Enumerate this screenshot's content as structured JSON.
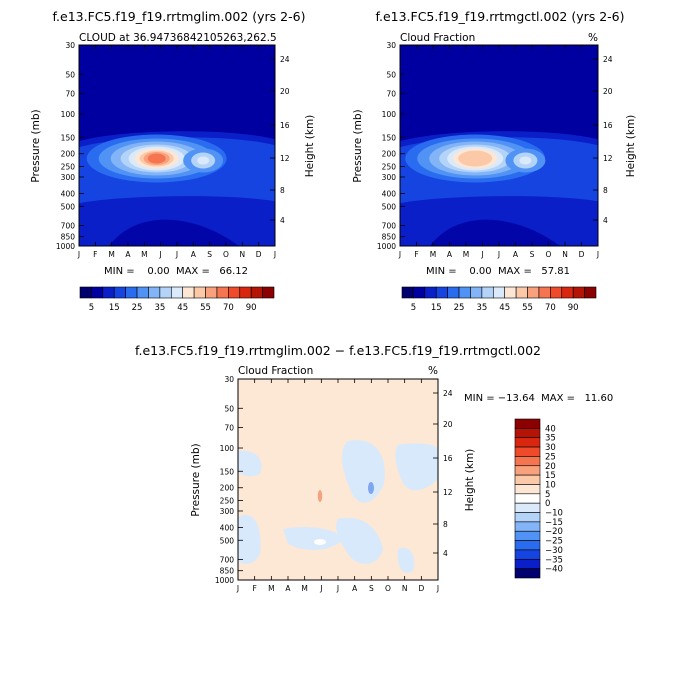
{
  "chart_data": [
    {
      "type": "heatmap",
      "title": "f.e13.FC5.f19_f19.rrtmglim.002 (yrs 2-6)",
      "subtitle_left": "CLOUD at 36.94736842105263,262.5",
      "subtitle_right": "",
      "units": "",
      "ylabel": "Pressure (mb)",
      "ylabel_right": "Height (km)",
      "x_ticks": [
        "J",
        "F",
        "M",
        "A",
        "M",
        "J",
        "J",
        "A",
        "S",
        "O",
        "N",
        "D",
        "J"
      ],
      "pressure_ticks": [
        "30",
        "50",
        "70",
        "100",
        "150",
        "200",
        "250",
        "300",
        "400",
        "500",
        "700",
        "850",
        "1000"
      ],
      "height_ticks": [
        "24",
        "20",
        "16",
        "12",
        "8",
        "4"
      ],
      "minmax_text": "MIN =    0.00  MAX =   66.12",
      "colorbar": {
        "orientation": "horizontal",
        "tick_labels": [
          "5",
          "15",
          "25",
          "35",
          "45",
          "55",
          "70",
          "90"
        ],
        "colors": [
          "#00006e",
          "#0000a0",
          "#0a1fc7",
          "#1644e0",
          "#2a6cf0",
          "#5192f5",
          "#82b4f7",
          "#b3d3f9",
          "#dbeafb",
          "#fde7d4",
          "#fbc8a8",
          "#f9a07c",
          "#f57550",
          "#ef4a2a",
          "#d8260f",
          "#b51306",
          "#8b0000"
        ]
      },
      "ylim_mb": [
        30,
        1000
      ],
      "peak": {
        "month": 5,
        "pressure_mb": 225,
        "value": 66.12
      }
    },
    {
      "type": "heatmap",
      "title": "f.e13.FC5.f19_f19.rrtmgctl.002 (yrs 2-6)",
      "subtitle_left": "Cloud Fraction",
      "subtitle_right": "%",
      "ylabel": "Pressure (mb)",
      "ylabel_right": "Height (km)",
      "x_ticks": [
        "J",
        "F",
        "M",
        "A",
        "M",
        "J",
        "J",
        "A",
        "S",
        "O",
        "N",
        "D",
        "J"
      ],
      "pressure_ticks": [
        "30",
        "50",
        "70",
        "100",
        "150",
        "200",
        "250",
        "300",
        "400",
        "500",
        "700",
        "850",
        "1000"
      ],
      "height_ticks": [
        "24",
        "20",
        "16",
        "12",
        "8",
        "4"
      ],
      "minmax_text": "MIN =    0.00  MAX =   57.81",
      "colorbar": {
        "orientation": "horizontal",
        "tick_labels": [
          "5",
          "15",
          "25",
          "35",
          "45",
          "55",
          "70",
          "90"
        ],
        "colors": [
          "#00006e",
          "#0000a0",
          "#0a1fc7",
          "#1644e0",
          "#2a6cf0",
          "#5192f5",
          "#82b4f7",
          "#b3d3f9",
          "#dbeafb",
          "#fde7d4",
          "#fbc8a8",
          "#f9a07c",
          "#f57550",
          "#ef4a2a",
          "#d8260f",
          "#b51306",
          "#8b0000"
        ]
      },
      "ylim_mb": [
        30,
        1000
      ],
      "peak": {
        "month": 4.8,
        "pressure_mb": 225,
        "value": 57.81
      }
    },
    {
      "type": "heatmap",
      "title": "f.e13.FC5.f19_f19.rrtmglim.002 − f.e13.FC5.f19_f19.rrtmgctl.002",
      "subtitle_left": "Cloud Fraction",
      "subtitle_right": "%",
      "ylabel": "Pressure (mb)",
      "ylabel_right": "Height (km)",
      "x_ticks": [
        "J",
        "F",
        "M",
        "A",
        "M",
        "J",
        "J",
        "A",
        "S",
        "O",
        "N",
        "D",
        "J"
      ],
      "pressure_ticks": [
        "30",
        "50",
        "70",
        "100",
        "150",
        "200",
        "250",
        "300",
        "400",
        "500",
        "700",
        "850",
        "1000"
      ],
      "height_ticks": [
        "24",
        "20",
        "16",
        "12",
        "8",
        "4"
      ],
      "minmax_text": "MIN = −13.64  MAX =   11.60",
      "colorbar": {
        "orientation": "vertical",
        "tick_labels": [
          "40",
          "35",
          "30",
          "25",
          "20",
          "15",
          "10",
          "5",
          "0",
          "−10",
          "−15",
          "−20",
          "−25",
          "−30",
          "−35",
          "−40"
        ],
        "colors": [
          "#8b0000",
          "#b51306",
          "#d8260f",
          "#ef4a2a",
          "#f57550",
          "#f9a07c",
          "#fbc8a8",
          "#fde7d4",
          "#ffffff",
          "#dbeafb",
          "#b3d3f9",
          "#82b4f7",
          "#5192f5",
          "#2a6cf0",
          "#1644e0",
          "#0a1fc7",
          "#00006e"
        ]
      },
      "ylim_mb": [
        30,
        1000
      ],
      "background_color": "#fde8d6",
      "patch_color": "#d8e9fb"
    }
  ]
}
